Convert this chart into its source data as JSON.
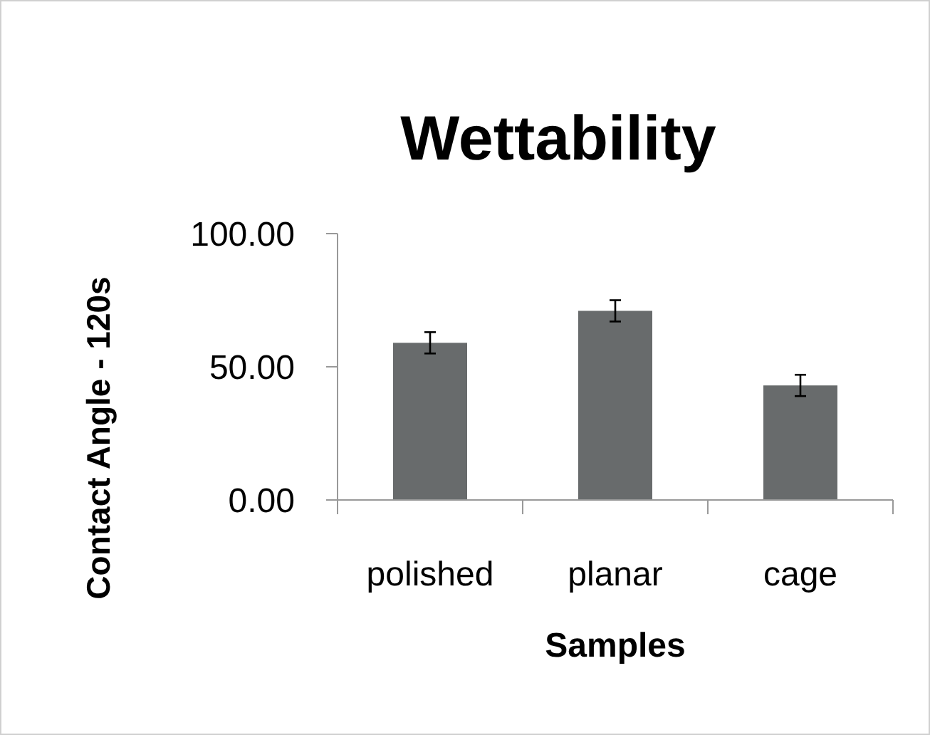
{
  "chart_data": {
    "type": "bar",
    "title": "Wettability",
    "xlabel": "Samples",
    "ylabel": "Contact Angle - 120s",
    "categories": [
      "polished",
      "planar",
      "cage"
    ],
    "values": [
      59,
      71,
      43
    ],
    "errors": [
      4,
      4,
      4
    ],
    "color": "#686b6c",
    "ylim": [
      0,
      100
    ],
    "yticks": [
      {
        "value": 0,
        "label": "0.00"
      },
      {
        "value": 50,
        "label": "50.00"
      },
      {
        "value": 100,
        "label": "100.00"
      }
    ],
    "grid": false
  }
}
